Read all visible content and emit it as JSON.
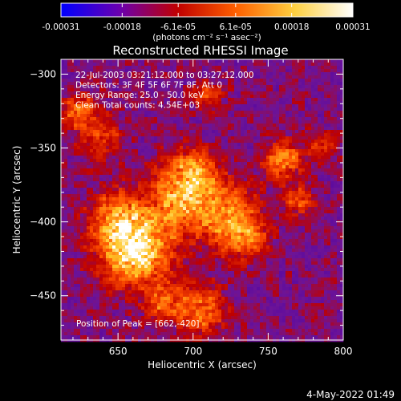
{
  "chart_data": [
    {
      "type": "colorbar",
      "tick_labels": [
        "-0.00031",
        "-0.00018",
        "-6.1e-05",
        "6.1e-05",
        "0.00018",
        "0.00031"
      ],
      "tick_values": [
        -0.00031,
        -0.00018,
        -6.1e-05,
        6.1e-05,
        0.00018,
        0.00031
      ],
      "range": [
        -0.00031,
        0.00031
      ],
      "unit_label": "(photons cm⁻² s⁻¹ asec⁻²)",
      "colormap": [
        "#0000ff",
        "#6a00b0",
        "#c00000",
        "#ff6000",
        "#ffd040",
        "#ffffff"
      ]
    },
    {
      "type": "heatmap",
      "title": "Reconstructed RHESSI Image",
      "xlabel": "Heliocentric X (arcsec)",
      "ylabel": "Heliocentric Y (arcsec)",
      "xlim": [
        612,
        800
      ],
      "ylim": [
        -480,
        -290
      ],
      "x_ticks": [
        650,
        700,
        750,
        800
      ],
      "y_ticks": [
        -300,
        -350,
        -400,
        -450
      ],
      "info_lines": [
        "22-Jul-2003 03:21:12.000 to 03:27:12.000",
        "Detectors: 3F 4F 5F 6F 7F 8F, Att 0",
        "Energy Range: 25.0 - 50.0 keV",
        "Clean    Total counts: 4.54E+03"
      ],
      "peak_label": "Position of Peak = [662,-420]",
      "peak": {
        "x": 662,
        "y": -420
      }
    }
  ],
  "footer_date": "4-May-2022 01:49"
}
